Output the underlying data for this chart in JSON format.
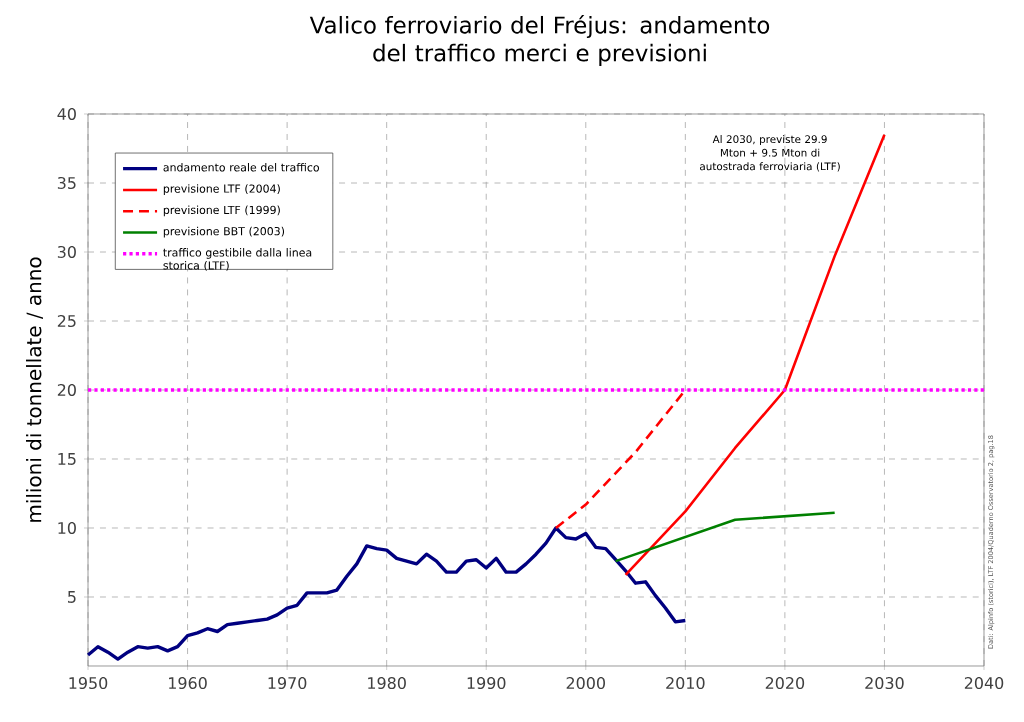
{
  "chart_data": {
    "type": "line",
    "title": "Valico ferroviario del Fréjus: andamento del traffico merci e previsioni",
    "ylabel": "milioni di tonnellate / anno",
    "xlim": [
      1950,
      2040
    ],
    "xticks": [
      1950,
      1960,
      1970,
      1980,
      1990,
      2000,
      2010,
      2020,
      2030,
      2040
    ],
    "ylim": [
      0,
      40
    ],
    "yticks": [
      5,
      10,
      15,
      20,
      25,
      30,
      35,
      40
    ],
    "grid": true,
    "legend": "top left",
    "series": [
      {
        "name": "andamento reale del traffico",
        "color": "#000080",
        "line_style": "solid",
        "x": [
          1950,
          1951,
          1952,
          1953,
          1954,
          1955,
          1956,
          1957,
          1958,
          1959,
          1960,
          1961,
          1962,
          1963,
          1964,
          1965,
          1966,
          1967,
          1968,
          1969,
          1970,
          1971,
          1972,
          1973,
          1974,
          1975,
          1976,
          1977,
          1978,
          1979,
          1980,
          1981,
          1982,
          1983,
          1984,
          1985,
          1986,
          1987,
          1988,
          1989,
          1990,
          1991,
          1992,
          1993,
          1994,
          1995,
          1996,
          1997,
          1998,
          1999,
          2000,
          2001,
          2002,
          2003,
          2004,
          2005,
          2006,
          2007,
          2008,
          2009,
          2010
        ],
        "values": [
          0.8,
          1.4,
          1.0,
          0.5,
          1.0,
          1.4,
          1.3,
          1.4,
          1.1,
          1.4,
          2.2,
          2.4,
          2.7,
          2.5,
          3.0,
          3.1,
          3.2,
          3.3,
          3.4,
          3.7,
          4.2,
          4.4,
          5.3,
          5.3,
          5.3,
          5.5,
          6.5,
          7.4,
          8.7,
          8.5,
          8.4,
          7.8,
          7.6,
          7.4,
          8.1,
          7.6,
          6.8,
          6.8,
          7.6,
          7.7,
          7.1,
          7.8,
          6.8,
          6.8,
          7.4,
          8.1,
          8.9,
          10.0,
          9.3,
          9.2,
          9.6,
          8.6,
          8.5,
          7.7,
          6.9,
          6.0,
          6.1,
          5.1,
          4.2,
          3.2,
          3.3
        ]
      },
      {
        "name": "previsione LTF (2004)",
        "color": "#ff0000",
        "line_style": "solid",
        "x": [
          2004,
          2010,
          2015,
          2020,
          2025,
          2030
        ],
        "values": [
          6.6,
          11.2,
          15.8,
          20.0,
          29.7,
          38.5
        ]
      },
      {
        "name": "previsione LTF (1999)",
        "color": "#ff0000",
        "line_style": "dashed",
        "x": [
          1997,
          2000,
          2005,
          2010
        ],
        "values": [
          10.0,
          11.7,
          15.5,
          20.0
        ]
      },
      {
        "name": "previsione BBT (2003)",
        "color": "#008000",
        "line_style": "solid",
        "x": [
          2003,
          2015,
          2025
        ],
        "values": [
          7.6,
          10.6,
          11.1
        ]
      },
      {
        "name": "traffico gestibile dalla linea storica (LTF)",
        "color": "#ff00ff",
        "line_style": "dotted",
        "x": [
          1950,
          2040
        ],
        "values": [
          20,
          20
        ]
      }
    ],
    "annotations": [
      "Al 2030, previste 29.9 Mton + 9.5 Mton di autostrada ferroviaria (LTF)",
      "Dati: Alpinfo (storici), LTF 2004/Quaderno Osservatorio 2, pag.18"
    ]
  }
}
